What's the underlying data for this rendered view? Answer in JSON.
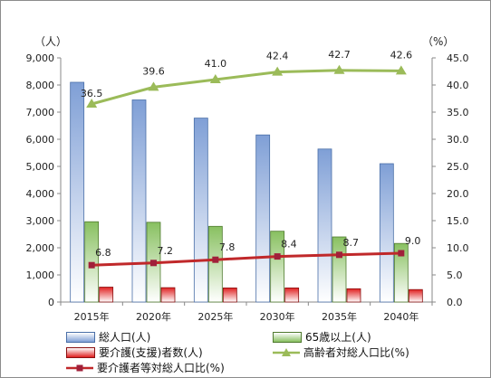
{
  "chart_data": {
    "type": "bar",
    "categories": [
      "2015年",
      "2020年",
      "2025年",
      "2030年",
      "2035年",
      "2040年"
    ],
    "left_axis": {
      "unit": "（人）",
      "ylim": [
        0,
        9000
      ],
      "ticks": [
        "0",
        "1,000",
        "2,000",
        "3,000",
        "4,000",
        "5,000",
        "6,000",
        "7,000",
        "8,000",
        "9,000"
      ]
    },
    "right_axis": {
      "unit": "（%）",
      "ylim": [
        0,
        45
      ],
      "ticks": [
        "0.0",
        "5.0",
        "10.0",
        "15.0",
        "20.0",
        "25.0",
        "30.0",
        "35.0",
        "40.0",
        "45.0"
      ]
    },
    "bar_series": [
      {
        "name": "総人口(人)",
        "values": [
          8100,
          7450,
          6780,
          6160,
          5640,
          5100
        ],
        "color": "#7f9fd6"
      },
      {
        "name": "65歳以上(人)",
        "values": [
          2960,
          2940,
          2790,
          2610,
          2400,
          2160
        ],
        "color": "#88c060"
      },
      {
        "name": "要介護(支援)者数(人)",
        "values": [
          550,
          530,
          520,
          520,
          490,
          460
        ],
        "color": "#e02020"
      }
    ],
    "line_series": [
      {
        "name": "高齢者対総人口比(%)",
        "values": [
          36.5,
          39.6,
          41.0,
          42.4,
          42.7,
          42.6
        ],
        "labels": [
          "36.5",
          "39.6",
          "41.0",
          "42.4",
          "42.7",
          "42.6"
        ],
        "color": "#9bbb59",
        "marker": "triangle"
      },
      {
        "name": "要介護者等対総人口比(%)",
        "values": [
          6.8,
          7.2,
          7.8,
          8.4,
          8.7,
          9.0
        ],
        "labels": [
          "6.8",
          "7.2",
          "7.8",
          "8.4",
          "8.7",
          "9.0"
        ],
        "color": "#c0282a",
        "marker": "square"
      }
    ],
    "grid": false,
    "legend": "bottom"
  }
}
